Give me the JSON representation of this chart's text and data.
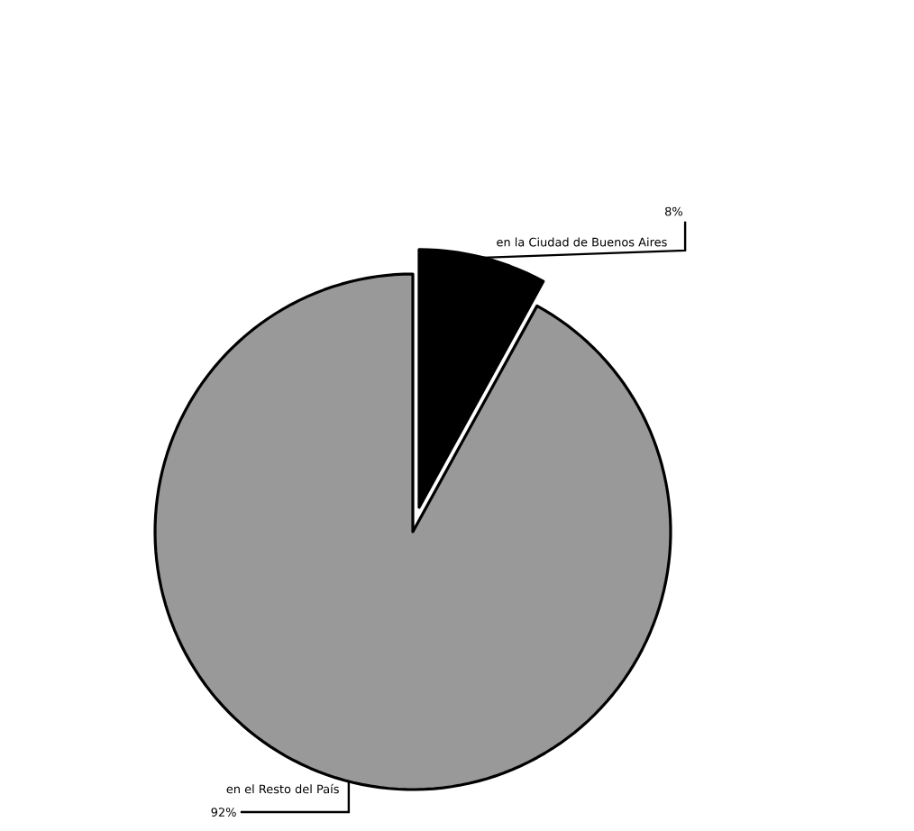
{
  "chart_data": {
    "type": "pie",
    "categories": [
      "en la Ciudad de Buenos Aires",
      "en el Resto del País"
    ],
    "values": [
      8,
      92
    ],
    "colors": [
      "#000000",
      "#999999"
    ],
    "value_labels": [
      "8%",
      "92%"
    ]
  }
}
